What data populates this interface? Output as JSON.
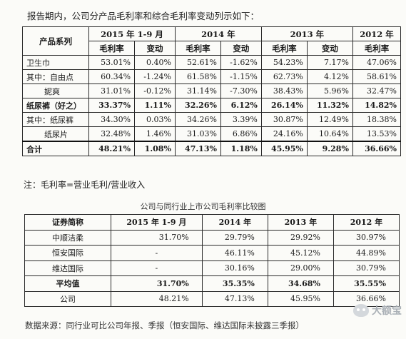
{
  "intro": "报告期内，公司分产品毛利率和综合毛利率变动列示如下：",
  "table1": {
    "header_category": "产品系列",
    "periods": [
      "2015 年 1-9 月",
      "2014 年",
      "2013 年",
      "2012 年"
    ],
    "subheaders": [
      "毛利率",
      "变动",
      "毛利率",
      "变动",
      "毛利率",
      "变动",
      "毛利率"
    ],
    "rows": [
      {
        "category": "卫生巾",
        "values": [
          "53.01%",
          "0.40%",
          "52.61%",
          "-1.62%",
          "54.23%",
          "7.17%",
          "47.06%"
        ]
      },
      {
        "category": "其中：自由点",
        "values": [
          "60.34%",
          "-1.24%",
          "61.58%",
          "-1.15%",
          "62.73%",
          "4.12%",
          "58.61%"
        ]
      },
      {
        "category": "妮爽",
        "values": [
          "31.01%",
          "-0.12%",
          "31.14%",
          "-7.30%",
          "38.43%",
          "5.96%",
          "32.47%"
        ]
      },
      {
        "category": "纸尿裤（好之）",
        "values": [
          "33.37%",
          "1.11%",
          "32.26%",
          "6.12%",
          "26.14%",
          "11.32%",
          "14.82%"
        ]
      },
      {
        "category": "其中：纸尿裤",
        "values": [
          "34.30%",
          "0.03%",
          "34.26%",
          "3.39%",
          "30.87%",
          "12.49%",
          "18.38%"
        ]
      },
      {
        "category": "纸尿片",
        "values": [
          "32.48%",
          "1.46%",
          "31.03%",
          "6.86%",
          "24.16%",
          "10.64%",
          "13.53%"
        ]
      },
      {
        "category": "合计",
        "values": [
          "48.21%",
          "1.08%",
          "47.13%",
          "1.18%",
          "45.95%",
          "9.28%",
          "36.66%"
        ]
      }
    ]
  },
  "note": "注：毛利率=营业毛利/营业收入",
  "caption": "公司与同行业上市公司毛利率比较图",
  "table2": {
    "headers": [
      "证券简称",
      "2015 年 1-9 月",
      "2014 年",
      "2013 年",
      "2012 年"
    ],
    "rows": [
      {
        "name": "中顺洁柔",
        "values": [
          "31.70%",
          "29.79%",
          "29.92%",
          "30.97%"
        ]
      },
      {
        "name": "恒安国际",
        "values": [
          "-",
          "46.11%",
          "45.12%",
          "44.89%"
        ]
      },
      {
        "name": "维达国际",
        "values": [
          "-",
          "30.16%",
          "29.00%",
          "30.79%"
        ]
      },
      {
        "name": "平均值",
        "values": [
          "31.70%",
          "35.35%",
          "34.68%",
          "35.55%"
        ]
      },
      {
        "name": "公司",
        "values": [
          "48.21%",
          "47.13%",
          "45.95%",
          "36.66%"
        ]
      }
    ]
  },
  "source": "数据来源：同行业可比公司年报、季报（恒安国际、维达国际未披露三季报）",
  "watermark": "大额宝"
}
